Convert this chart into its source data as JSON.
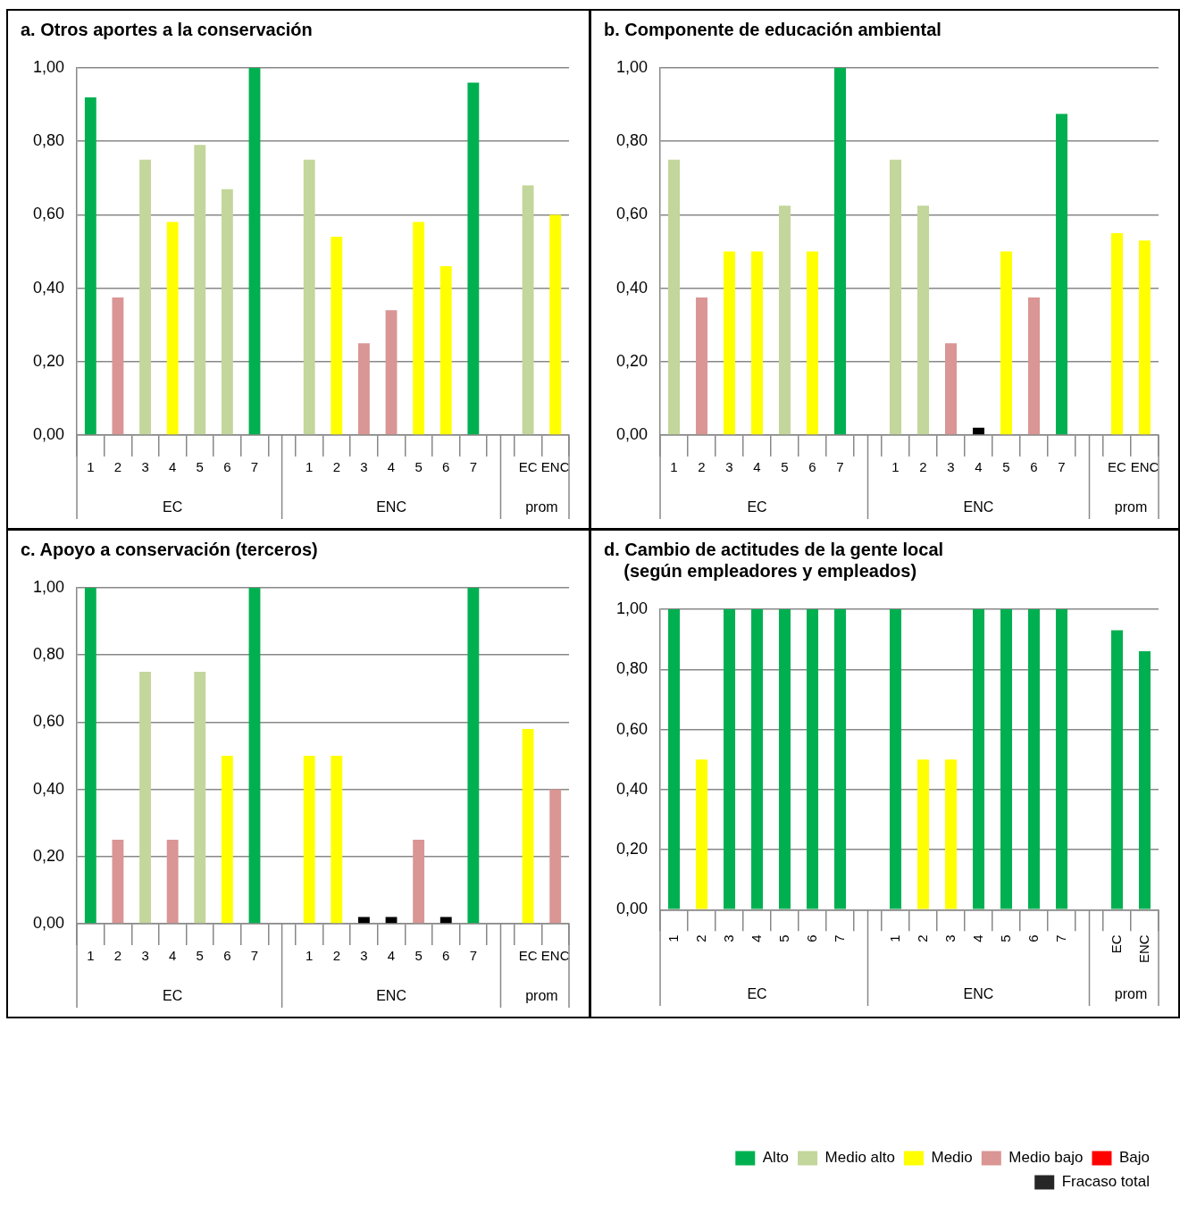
{
  "chart_data": [
    {
      "type": "bar",
      "title": "a. Otros aportes a la conservación",
      "categories": [
        "1",
        "2",
        "3",
        "4",
        "5",
        "6",
        "7",
        null,
        "1",
        "2",
        "3",
        "4",
        "5",
        "6",
        "7",
        null,
        "EC",
        "ENC"
      ],
      "annotations": [
        "EC",
        "ENC",
        "prom"
      ],
      "series": [
        {
          "color": "#00b050",
          "values": [
            0.92,
            null,
            null,
            null,
            null,
            null,
            1.0,
            null,
            null,
            null,
            null,
            null,
            null,
            null,
            0.96,
            null,
            null,
            null
          ]
        },
        {
          "color": "#c3d69b",
          "values": [
            null,
            null,
            0.75,
            null,
            0.79,
            0.67,
            null,
            null,
            0.75,
            null,
            null,
            null,
            null,
            null,
            null,
            null,
            0.68,
            null
          ]
        },
        {
          "color": "#ffff00",
          "values": [
            null,
            null,
            null,
            0.58,
            null,
            null,
            null,
            null,
            null,
            0.54,
            null,
            null,
            0.58,
            0.46,
            null,
            null,
            null,
            0.6
          ]
        },
        {
          "color": "#d99694",
          "values": [
            null,
            0.375,
            null,
            null,
            null,
            null,
            null,
            null,
            null,
            null,
            0.25,
            0.34,
            null,
            null,
            null,
            null,
            null,
            null
          ]
        }
      ],
      "ylim": [
        0,
        1
      ],
      "yticks": [
        {
          "value": 0,
          "label": "0,00"
        },
        {
          "value": 0.2,
          "label": "0,20"
        },
        {
          "value": 0.4,
          "label": "0,40"
        },
        {
          "value": 0.6,
          "label": "0,60"
        },
        {
          "value": 0.8,
          "label": "0,80"
        },
        {
          "value": 1,
          "label": "1,00"
        }
      ],
      "grid": "y"
    },
    {
      "type": "bar",
      "title": "b. Componente de educación ambiental",
      "categories": [
        "1",
        "2",
        "3",
        "4",
        "5",
        "6",
        "7",
        null,
        "1",
        "2",
        "3",
        "4",
        "5",
        "6",
        "7",
        null,
        "EC",
        "ENC"
      ],
      "annotations": [
        "EC",
        "ENC",
        "prom"
      ],
      "series": [
        {
          "color": "#00b050",
          "values": [
            null,
            null,
            null,
            null,
            null,
            null,
            1.0,
            null,
            null,
            null,
            null,
            null,
            null,
            null,
            0.875,
            null,
            null,
            null
          ]
        },
        {
          "color": "#c3d69b",
          "values": [
            0.75,
            null,
            null,
            null,
            0.625,
            null,
            null,
            null,
            0.75,
            0.625,
            null,
            null,
            null,
            null,
            null,
            null,
            null,
            null
          ]
        },
        {
          "color": "#ffff00",
          "values": [
            null,
            null,
            0.5,
            0.5,
            null,
            0.5,
            null,
            null,
            null,
            null,
            null,
            null,
            0.5,
            null,
            null,
            null,
            0.55,
            0.53
          ]
        },
        {
          "color": "#d99694",
          "values": [
            null,
            0.375,
            null,
            null,
            null,
            null,
            null,
            null,
            null,
            null,
            0.25,
            null,
            null,
            0.375,
            null,
            null,
            null,
            null
          ]
        },
        {
          "color": "#000000",
          "values": [
            null,
            null,
            null,
            null,
            null,
            null,
            null,
            null,
            null,
            null,
            null,
            0.02,
            null,
            null,
            null,
            null,
            null,
            null
          ]
        }
      ],
      "ylim": [
        0,
        1
      ],
      "yticks": [
        {
          "value": 0,
          "label": "0,00"
        },
        {
          "value": 0.2,
          "label": "0,20"
        },
        {
          "value": 0.4,
          "label": "0,40"
        },
        {
          "value": 0.6,
          "label": "0,60"
        },
        {
          "value": 0.8,
          "label": "0,80"
        },
        {
          "value": 1,
          "label": "1,00"
        }
      ],
      "grid": "y"
    },
    {
      "type": "bar",
      "title": "c. Apoyo a conservación (terceros)",
      "categories": [
        "1",
        "2",
        "3",
        "4",
        "5",
        "6",
        "7",
        null,
        "1",
        "2",
        "3",
        "4",
        "5",
        "6",
        "7",
        null,
        "EC",
        "ENC"
      ],
      "annotations": [
        "EC",
        "ENC",
        "prom"
      ],
      "series": [
        {
          "color": "#00b050",
          "values": [
            1.0,
            null,
            null,
            null,
            null,
            null,
            1.0,
            null,
            null,
            null,
            null,
            null,
            null,
            null,
            1.0,
            null,
            null,
            null
          ]
        },
        {
          "color": "#c3d69b",
          "values": [
            null,
            null,
            0.75,
            null,
            0.75,
            null,
            null,
            null,
            null,
            null,
            null,
            null,
            null,
            null,
            null,
            null,
            null,
            null
          ]
        },
        {
          "color": "#ffff00",
          "values": [
            null,
            null,
            null,
            null,
            null,
            0.5,
            null,
            null,
            0.5,
            0.5,
            null,
            null,
            null,
            null,
            null,
            null,
            0.58,
            null
          ]
        },
        {
          "color": "#d99694",
          "values": [
            null,
            0.25,
            null,
            0.25,
            null,
            null,
            null,
            null,
            null,
            null,
            null,
            null,
            0.25,
            null,
            null,
            null,
            null,
            0.4
          ]
        },
        {
          "color": "#000000",
          "values": [
            null,
            null,
            null,
            null,
            null,
            null,
            null,
            null,
            null,
            null,
            0.02,
            0.02,
            null,
            0.02,
            null,
            null,
            null,
            null
          ]
        }
      ],
      "ylim": [
        0,
        1
      ],
      "yticks": [
        {
          "value": 0,
          "label": "0,00"
        },
        {
          "value": 0.2,
          "label": "0,20"
        },
        {
          "value": 0.4,
          "label": "0,40"
        },
        {
          "value": 0.6,
          "label": "0,60"
        },
        {
          "value": 0.8,
          "label": "0,80"
        },
        {
          "value": 1,
          "label": "1,00"
        }
      ],
      "grid": "y"
    },
    {
      "type": "bar",
      "title": "d. Cambio de actitudes de la gente local\n    (según empleadores y empleados)",
      "categories": [
        "1",
        "2",
        "3",
        "4",
        "5",
        "6",
        "7",
        null,
        "1",
        "2",
        "3",
        "4",
        "5",
        "6",
        "7",
        null,
        "EC",
        "ENC"
      ],
      "annotations": [
        "EC",
        "ENC",
        "prom"
      ],
      "series": [
        {
          "name": "Alto",
          "color": "#00b050",
          "values": [
            1,
            null,
            1,
            1,
            1,
            1,
            1,
            null,
            1,
            null,
            null,
            1,
            1,
            1,
            1,
            null,
            0.93,
            0.86
          ]
        },
        {
          "name": "Medio alto",
          "color": "#c3d69b",
          "values": [
            null,
            null,
            null,
            null,
            null,
            null,
            null,
            null,
            null,
            null,
            null,
            null,
            null,
            null,
            null,
            null,
            null,
            null
          ]
        },
        {
          "name": "Medio",
          "color": "#ffff00",
          "values": [
            null,
            0.5,
            null,
            null,
            null,
            null,
            null,
            null,
            null,
            0.5,
            0.5,
            null,
            null,
            null,
            null,
            null,
            null,
            null
          ]
        },
        {
          "name": "Medio bajo",
          "color": "#d99694",
          "values": [
            null,
            null,
            null,
            null,
            null,
            null,
            null,
            null,
            null,
            null,
            null,
            null,
            null,
            null,
            null,
            null,
            null,
            null
          ]
        },
        {
          "name": "Bajo",
          "color": "#ff0000",
          "values": [
            null,
            null,
            null,
            null,
            null,
            null,
            null,
            null,
            null,
            null,
            null,
            null,
            null,
            null,
            null,
            null,
            null,
            null
          ]
        },
        {
          "name": "Fracaso total",
          "color": "#262626",
          "values": [
            null,
            null,
            null,
            null,
            null,
            null,
            null,
            null,
            null,
            null,
            null,
            null,
            null,
            null,
            null,
            null,
            null,
            null
          ]
        }
      ],
      "ylim": [
        0,
        1
      ],
      "yticks": [
        {
          "value": 0,
          "label": "0,00"
        },
        {
          "value": 0.2,
          "label": "0,20"
        },
        {
          "value": 0.4,
          "label": "0,40"
        },
        {
          "value": 0.6,
          "label": "0,60"
        },
        {
          "value": 0.8,
          "label": "0,80"
        },
        {
          "value": 1,
          "label": "1,00"
        }
      ],
      "grid": "y",
      "legend": "bottom right"
    }
  ]
}
